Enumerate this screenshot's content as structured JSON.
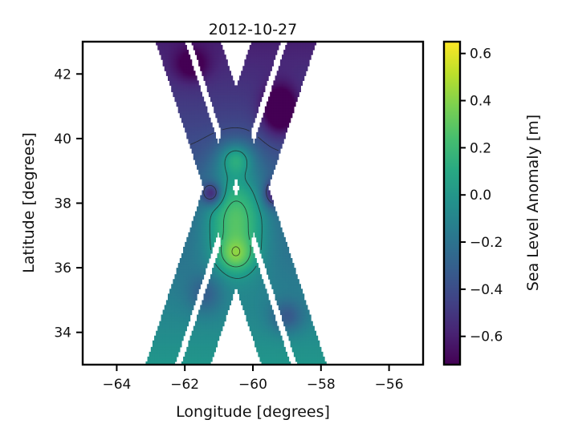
{
  "chart_data": {
    "type": "heatmap",
    "title": "2012-10-27",
    "xlabel": "Longitude [degrees]",
    "ylabel": "Latitude [degrees]",
    "xlim": [
      -65,
      -55
    ],
    "ylim": [
      33,
      43
    ],
    "xticks": [
      -64,
      -62,
      -60,
      -58,
      -56
    ],
    "yticks": [
      34,
      36,
      38,
      40,
      42
    ],
    "xtick_labels": [
      "−64",
      "−62",
      "−60",
      "−58",
      "−56"
    ],
    "ytick_labels": [
      "34",
      "36",
      "38",
      "40",
      "42"
    ],
    "grid": false,
    "colormap": "viridis",
    "colorbar": {
      "label": "Sea Level Anomaly [m]",
      "range": [
        -0.72,
        0.65
      ],
      "ticks": [
        -0.6,
        -0.4,
        -0.2,
        0.0,
        0.2,
        0.4,
        0.6
      ],
      "tick_labels": [
        "−0.6",
        "−0.4",
        "−0.2",
        "0.0",
        "0.2",
        "0.4",
        "0.6"
      ]
    },
    "swaths": [
      {
        "name": "descending track",
        "center_lon_at_lat_43": -61.9,
        "center_lon_at_lat_33": -58.8,
        "gap_halfwidth_deg": 0.1,
        "outer_halfwidth_deg": 0.95
      },
      {
        "name": "ascending track",
        "center_lon_at_lat_43": -59.1,
        "center_lon_at_lat_33": -62.2,
        "gap_halfwidth_deg": 0.1,
        "outer_halfwidth_deg": 0.95
      }
    ],
    "anomaly_features": [
      {
        "lon": -60.5,
        "lat": 37.6,
        "value": 0.55,
        "spread_lon": 0.9,
        "spread_lat": 1.6
      },
      {
        "lon": -60.5,
        "lat": 39.4,
        "value": 0.35,
        "spread_lon": 0.5,
        "spread_lat": 0.5
      },
      {
        "lon": -60.5,
        "lat": 36.4,
        "value": 0.3,
        "spread_lon": 0.5,
        "spread_lat": 0.5
      },
      {
        "lon": -61.2,
        "lat": 38.3,
        "value": -0.45,
        "spread_lon": 0.3,
        "spread_lat": 0.35
      },
      {
        "lon": -59.4,
        "lat": 38.3,
        "value": -0.4,
        "spread_lon": 0.3,
        "spread_lat": 0.4
      },
      {
        "lon": -59.2,
        "lat": 40.9,
        "value": -0.5,
        "spread_lon": 0.5,
        "spread_lat": 0.7
      },
      {
        "lon": -61.8,
        "lat": 42.3,
        "value": -0.25,
        "spread_lon": 0.5,
        "spread_lat": 0.5
      },
      {
        "lon": -59.0,
        "lat": 34.5,
        "value": -0.25,
        "spread_lon": 0.5,
        "spread_lat": 0.5
      },
      {
        "lon": -61.4,
        "lat": 35.2,
        "value": -0.2,
        "spread_lon": 0.5,
        "spread_lat": 0.6
      }
    ],
    "background_trend": {
      "north_value": -0.6,
      "south_value": 0.0
    }
  }
}
